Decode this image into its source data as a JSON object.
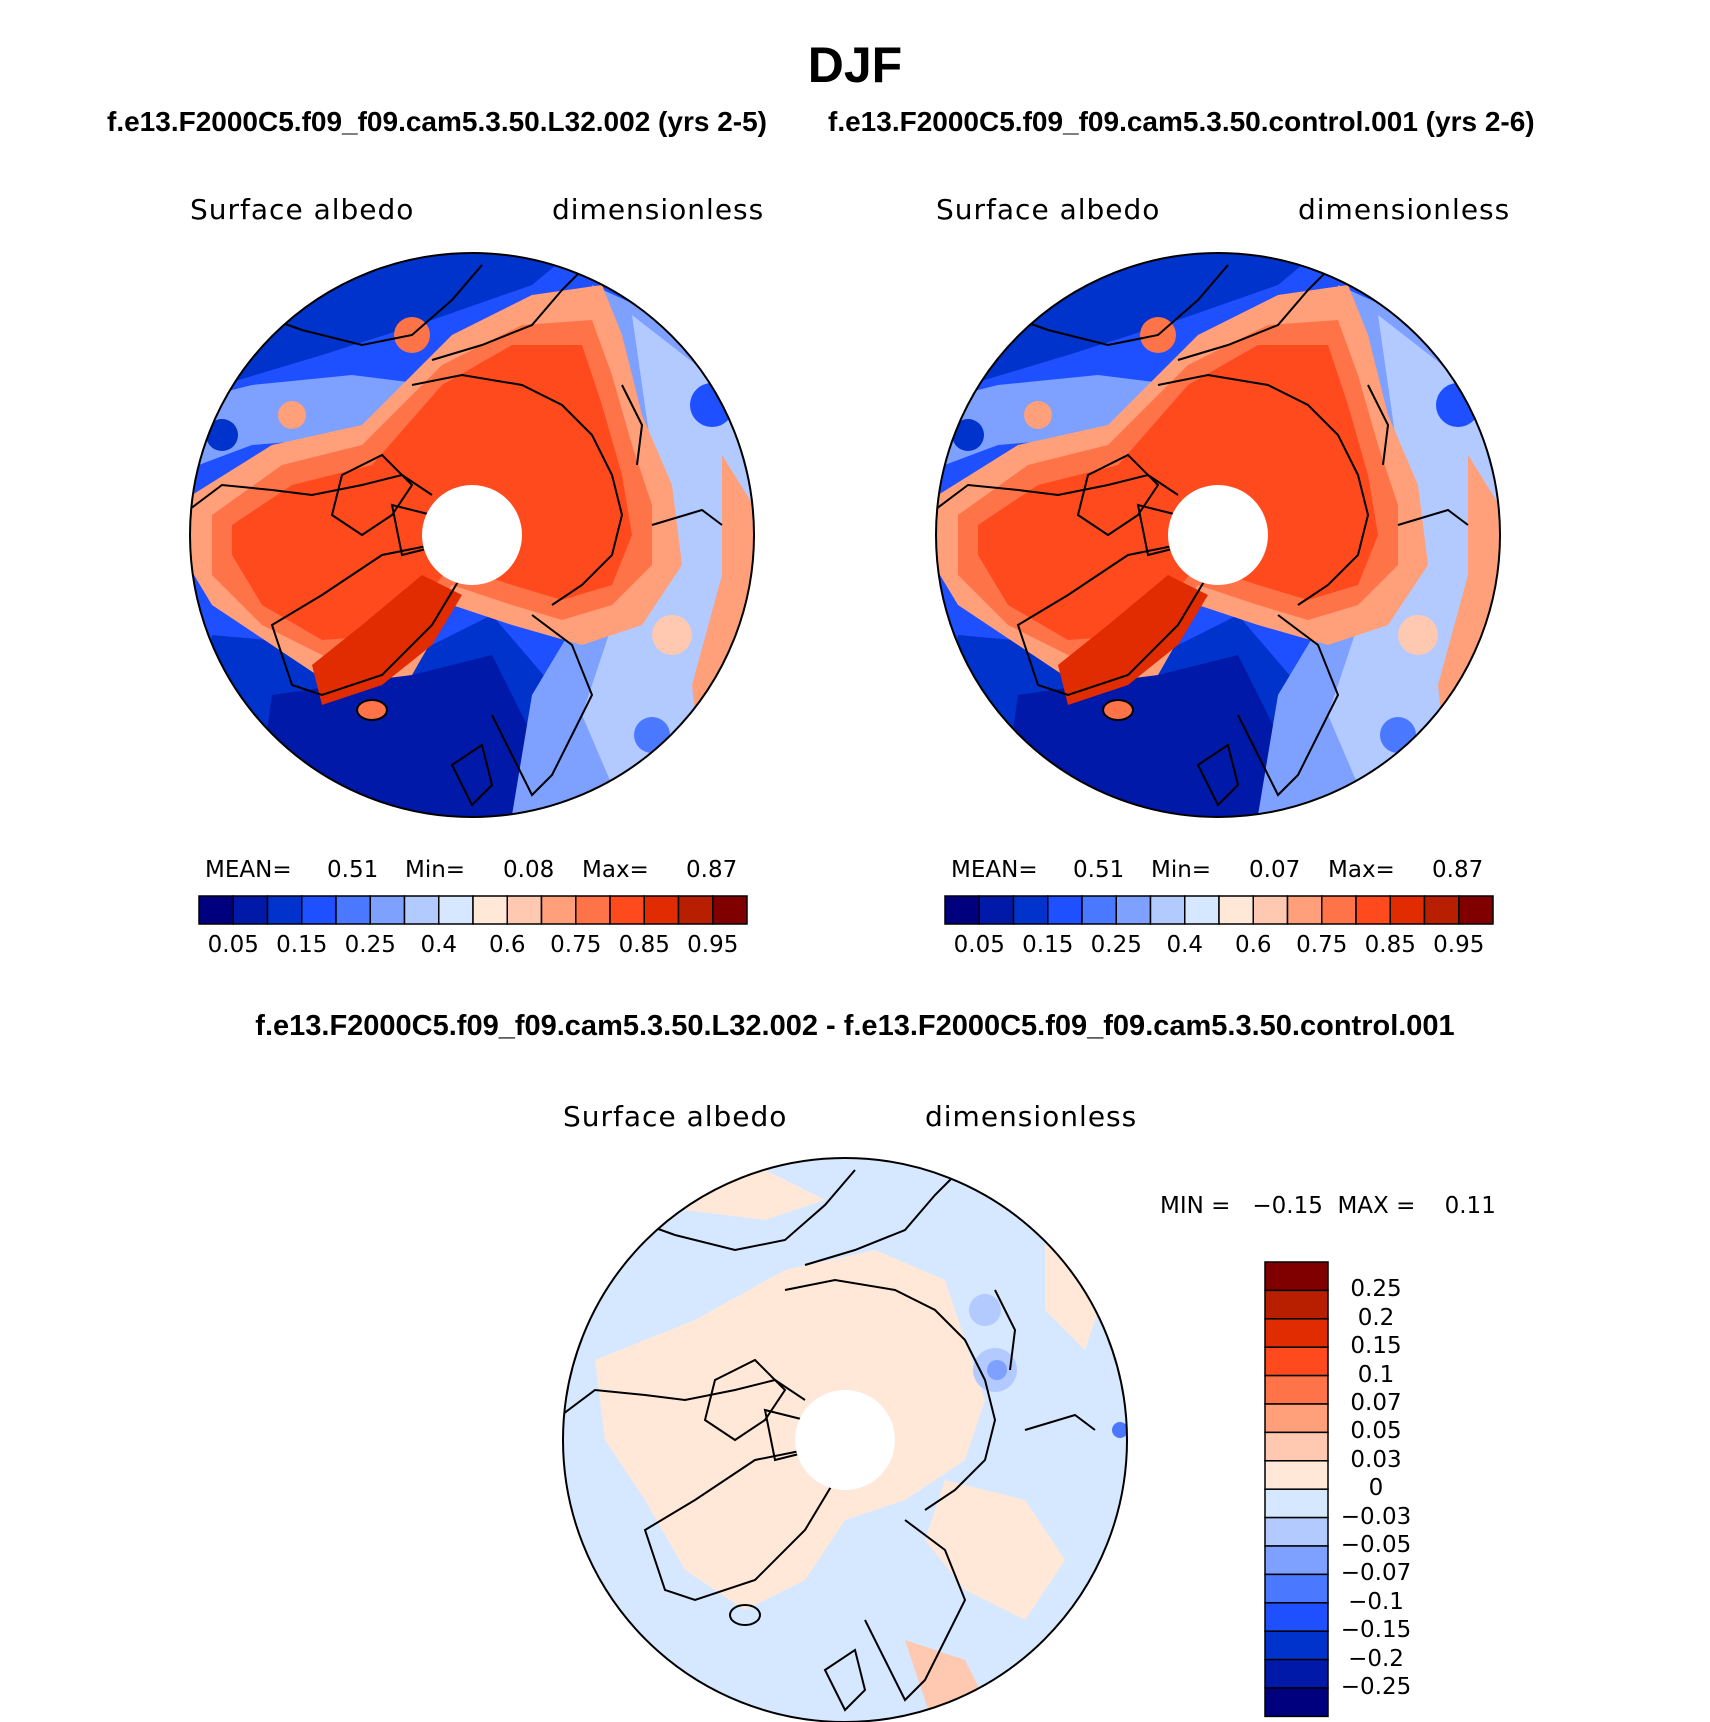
{
  "title": "DJF",
  "panels": [
    {
      "case_title": "f.e13.F2000C5.f09_f09.cam5.3.50.L32.002 (yrs 2-5)",
      "left_label": "Surface albedo",
      "right_label": "dimensionless",
      "stats": {
        "mean_label": "MEAN=",
        "mean": "0.51",
        "min_label": "Min=",
        "min": "0.08",
        "max_label": "Max=",
        "max": "0.87"
      }
    },
    {
      "case_title": "f.e13.F2000C5.f09_f09.cam5.3.50.control.001 (yrs 2-6)",
      "left_label": "Surface albedo",
      "right_label": "dimensionless",
      "stats": {
        "mean_label": "MEAN=",
        "mean": "0.51",
        "min_label": "Min=",
        "min": "0.07",
        "max_label": "Max=",
        "max": "0.87"
      }
    }
  ],
  "colorbar": {
    "colors": [
      "#00007f",
      "#0019a8",
      "#0032cc",
      "#1e50ff",
      "#4a78ff",
      "#7ea0ff",
      "#b2caff",
      "#d6e8ff",
      "#ffe8d8",
      "#ffc8b0",
      "#ffa07a",
      "#ff7348",
      "#ff4a1e",
      "#e02c00",
      "#b81e00",
      "#800000"
    ],
    "labels": [
      "0.05",
      "0.15",
      "0.25",
      "0.4",
      "0.6",
      "0.75",
      "0.85",
      "0.95"
    ]
  },
  "diff_panel": {
    "title": "f.e13.F2000C5.f09_f09.cam5.3.50.L32.002 - f.e13.F2000C5.f09_f09.cam5.3.50.control.001",
    "left_label": "Surface albedo",
    "right_label": "dimensionless",
    "minmax": "MIN =   −0.15  MAX =    0.11",
    "colorbar_colors": [
      "#800000",
      "#b81e00",
      "#e02c00",
      "#ff4a1e",
      "#ff7348",
      "#ffa07a",
      "#ffc8b0",
      "#ffe8d8",
      "#d6e8ff",
      "#b2caff",
      "#7ea0ff",
      "#4a78ff",
      "#1e50ff",
      "#0032cc",
      "#0019a8",
      "#00007f"
    ],
    "colorbar_labels": [
      "0.25",
      "0.2",
      "0.15",
      "0.1",
      "0.07",
      "0.05",
      "0.03",
      "0",
      "−0.03",
      "−0.05",
      "−0.07",
      "−0.1",
      "−0.15",
      "−0.2",
      "−0.25"
    ]
  }
}
